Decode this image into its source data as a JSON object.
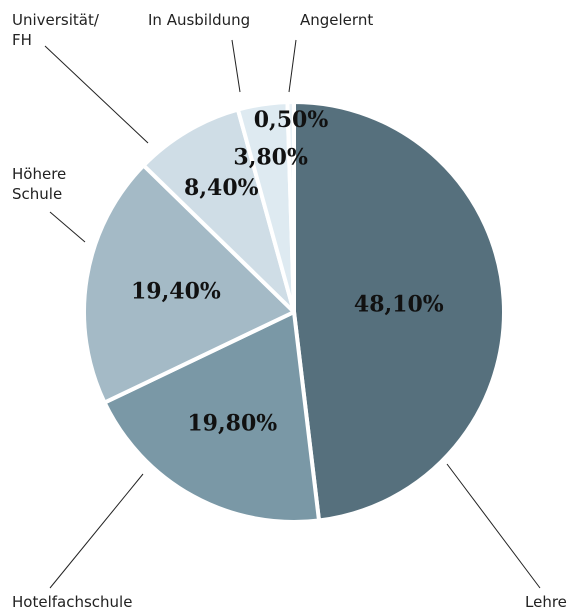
{
  "chart_data": {
    "type": "pie",
    "categories": [
      "Lehre",
      "Hotelfachschule",
      "Höhere Schule",
      "Universität/ FH",
      "In Ausbildung",
      "Angelernt"
    ],
    "values": [
      48.1,
      19.8,
      19.4,
      8.4,
      3.8,
      0.5
    ],
    "value_labels": [
      "48,10%",
      "19,80%",
      "19,40%",
      "8,40%",
      "3,80%",
      "0,50%"
    ],
    "colors": [
      "#56707d",
      "#7a98a6",
      "#a4bac6",
      "#cfdde6",
      "#deeaf1",
      "#e9f1f6"
    ]
  }
}
